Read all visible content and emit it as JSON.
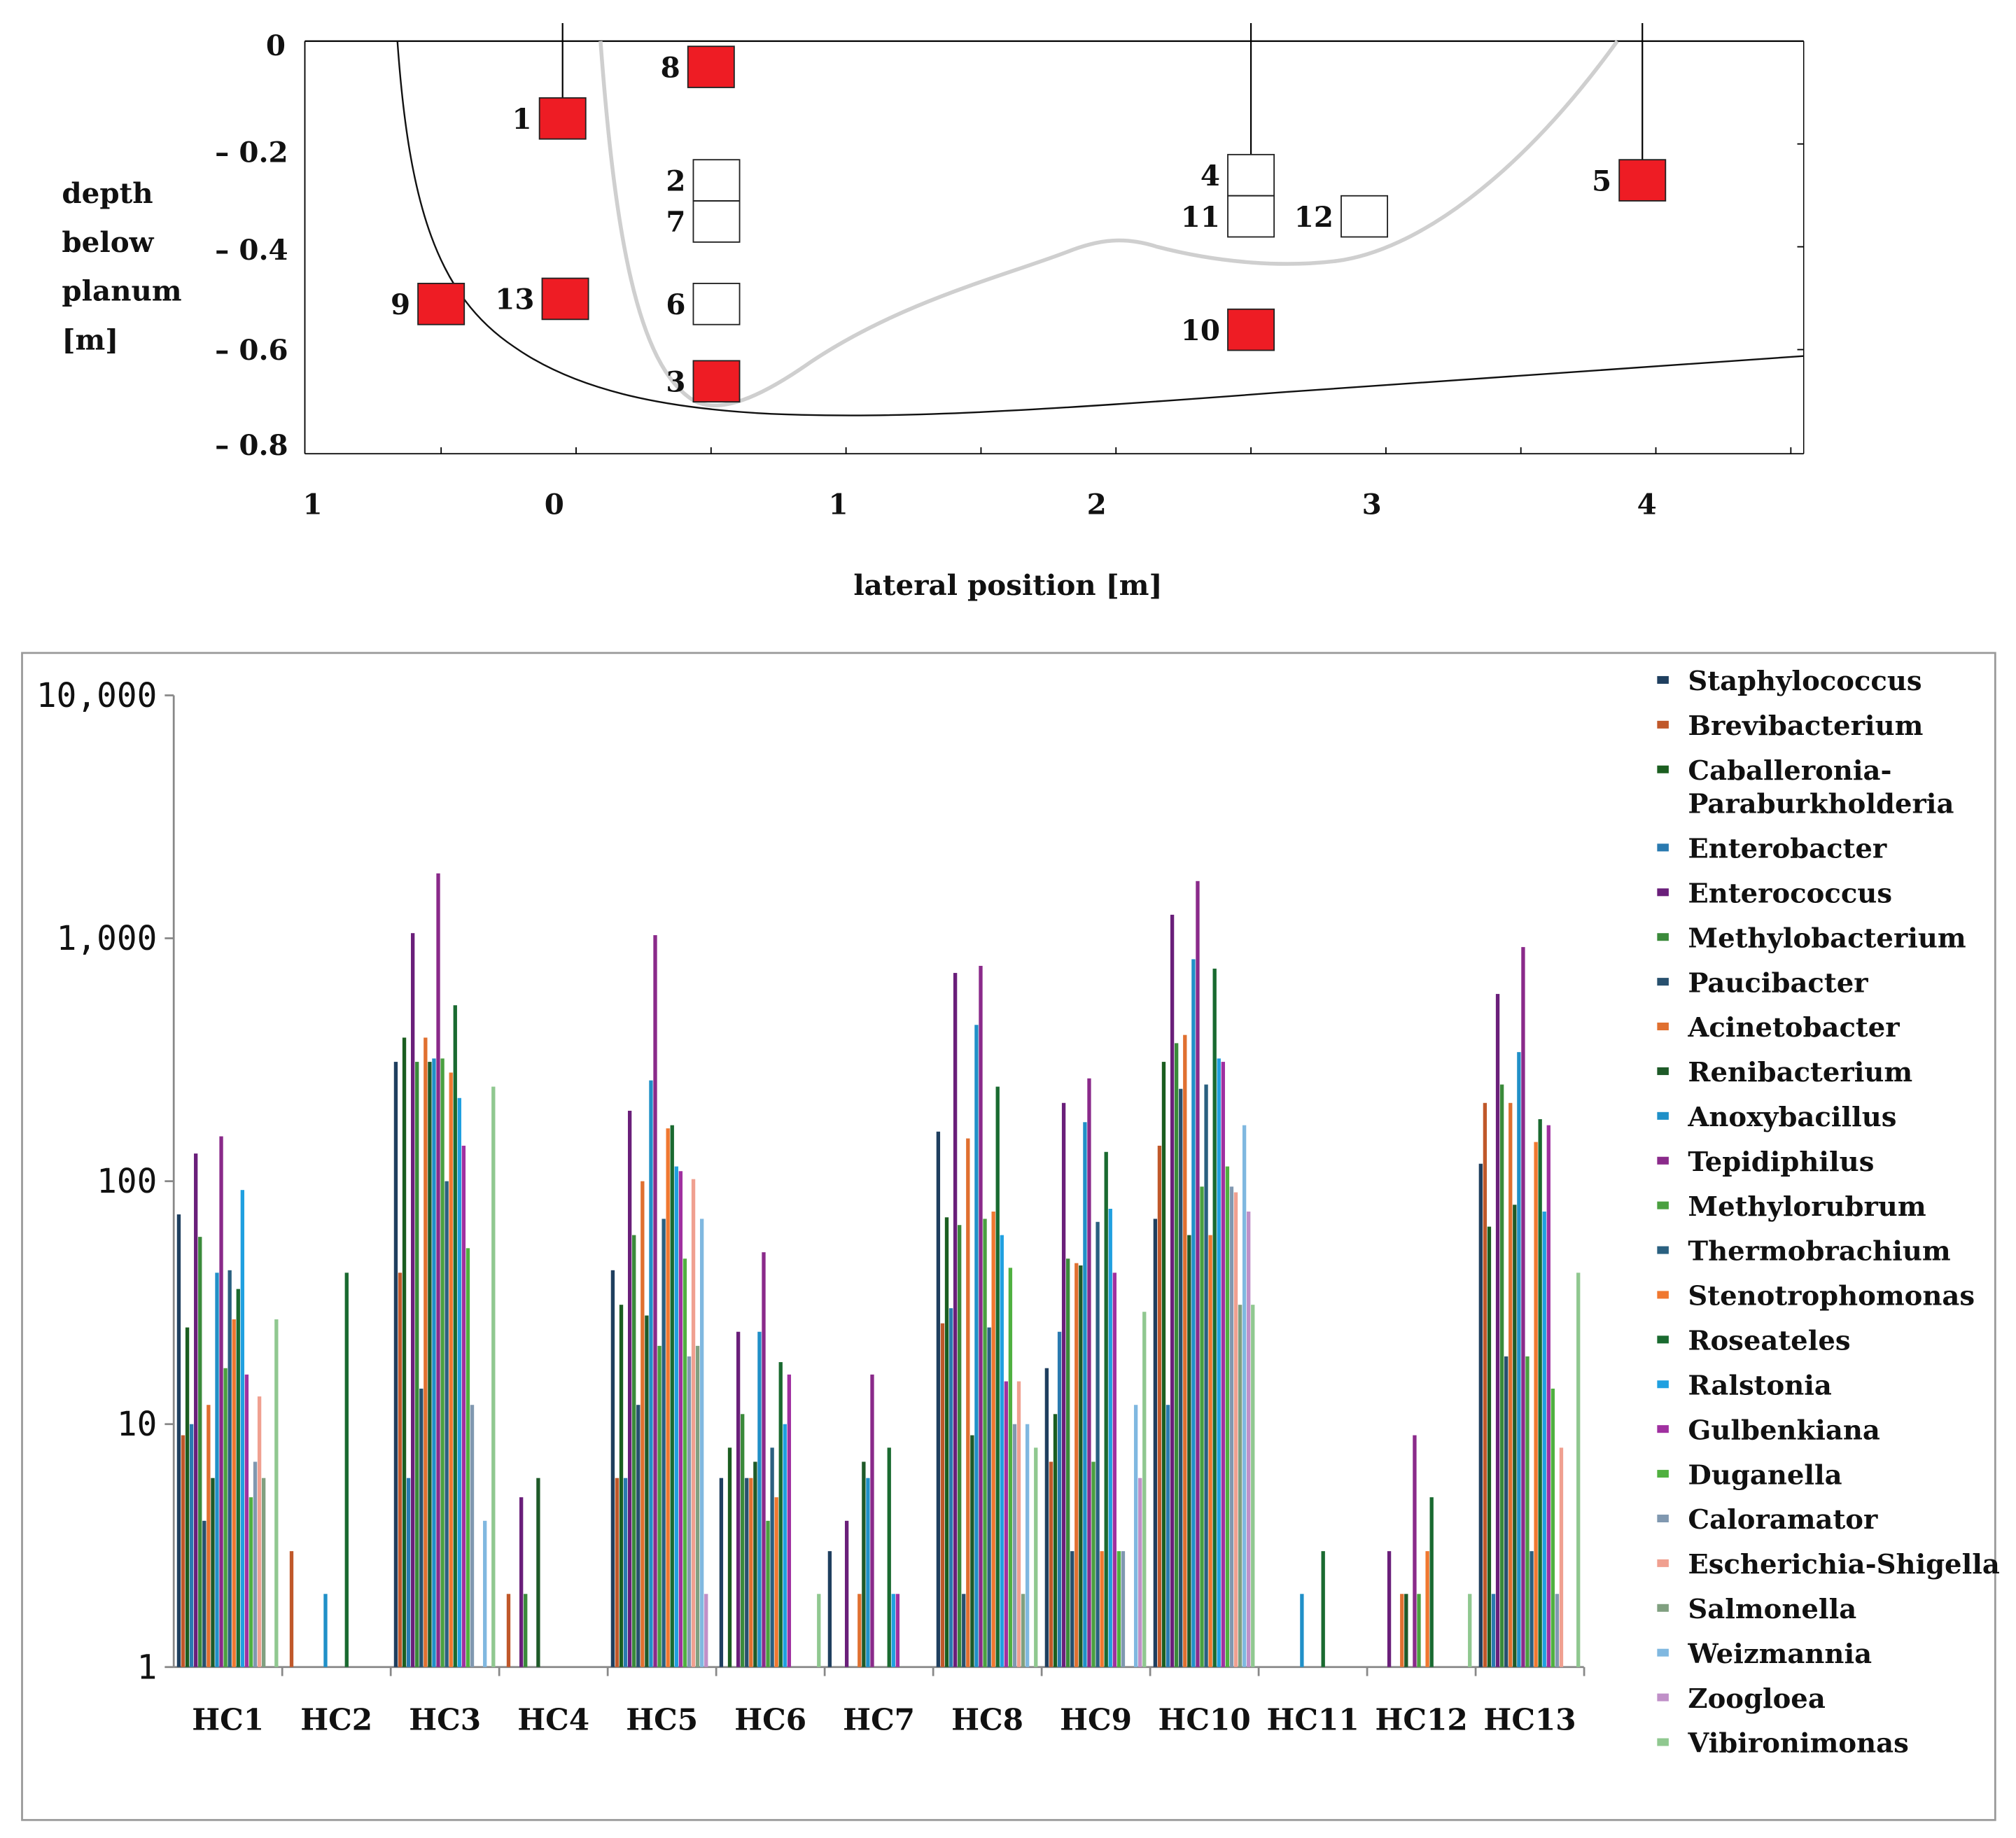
{
  "diagram": {
    "y_axis_title": [
      "depth",
      "below",
      "planum",
      "[m]"
    ],
    "y_ticks": [
      "0",
      "– 0.2",
      "– 0.4",
      "– 0.6",
      "– 0.8"
    ],
    "x_ticks": [
      "1",
      "0",
      "1",
      "2",
      "3",
      "4"
    ],
    "x_axis_title": "lateral position [m]",
    "samples": [
      {
        "label": "1",
        "lateral": -0.05,
        "depth": 0.15,
        "filled": true,
        "probe_line": true
      },
      {
        "label": "8",
        "lateral": 0.5,
        "depth": 0.05,
        "filled": true,
        "probe_line": false
      },
      {
        "label": "2",
        "lateral": 0.52,
        "depth": 0.27,
        "filled": false,
        "probe_line": false
      },
      {
        "label": "7",
        "lateral": 0.52,
        "depth": 0.35,
        "filled": false,
        "probe_line": false
      },
      {
        "label": "6",
        "lateral": 0.52,
        "depth": 0.51,
        "filled": false,
        "probe_line": false
      },
      {
        "label": "3",
        "lateral": 0.52,
        "depth": 0.66,
        "filled": true,
        "probe_line": false
      },
      {
        "label": "9",
        "lateral": -0.5,
        "depth": 0.51,
        "filled": true,
        "probe_line": false
      },
      {
        "label": "13",
        "lateral": -0.04,
        "depth": 0.5,
        "filled": true,
        "probe_line": false
      },
      {
        "label": "4",
        "lateral": 2.5,
        "depth": 0.26,
        "filled": false,
        "probe_line": true
      },
      {
        "label": "11",
        "lateral": 2.5,
        "depth": 0.34,
        "filled": false,
        "probe_line": false
      },
      {
        "label": "12",
        "lateral": 2.92,
        "depth": 0.34,
        "filled": false,
        "probe_line": false
      },
      {
        "label": "5",
        "lateral": 3.95,
        "depth": 0.27,
        "filled": true,
        "probe_line": true
      },
      {
        "label": "10",
        "lateral": 2.5,
        "depth": 0.56,
        "filled": true,
        "probe_line": false
      }
    ],
    "colors": {
      "filled": "#ee1c24",
      "empty": "#ffffff"
    }
  },
  "chart_data": {
    "type": "bar",
    "yscale": "log",
    "ylim": [
      1,
      10000
    ],
    "y_tick_labels": [
      "10,000",
      "1,000",
      "100",
      "10",
      "1"
    ],
    "legend_position": "right",
    "categories": [
      "HC1",
      "HC2",
      "HC3",
      "HC4",
      "HC5",
      "HC6",
      "HC7",
      "HC8",
      "HC9",
      "HC10",
      "HC11",
      "HC12",
      "HC13"
    ],
    "series": [
      {
        "name": "Staphylococcus",
        "color": "#1f3f5f",
        "values": [
          73,
          0,
          310,
          0,
          43,
          6,
          3,
          160,
          17,
          70,
          0,
          0,
          118
        ]
      },
      {
        "name": "Brevibacterium",
        "color": "#c0582a",
        "values": [
          9,
          3,
          42,
          2,
          6,
          0,
          0,
          26,
          7,
          140,
          0,
          0,
          210
        ]
      },
      {
        "name": "Caballeronia-Paraburkholderia",
        "color": "#1b5e20",
        "values": [
          25,
          0,
          390,
          0,
          31,
          8,
          0,
          71,
          11,
          310,
          0,
          0,
          65
        ]
      },
      {
        "name": "Enterobacter",
        "color": "#2a7ab0",
        "values": [
          10,
          0,
          6,
          0,
          6,
          0,
          0,
          30,
          24,
          12,
          0,
          0,
          2
        ]
      },
      {
        "name": "Enterococcus",
        "color": "#6a1f7a",
        "values": [
          130,
          0,
          1050,
          5,
          195,
          24,
          4,
          720,
          210,
          1250,
          0,
          3,
          590
        ]
      },
      {
        "name": "Methylobacterium",
        "color": "#3a8a3a",
        "values": [
          59,
          0,
          310,
          2,
          60,
          11,
          0,
          66,
          48,
          370,
          0,
          0,
          250
        ]
      },
      {
        "name": "Paucibacter",
        "color": "#28506e",
        "values": [
          4,
          0,
          14,
          0,
          12,
          6,
          0,
          2,
          3,
          240,
          0,
          0,
          19
        ]
      },
      {
        "name": "Acinetobacter",
        "color": "#e07030",
        "values": [
          12,
          0,
          390,
          0,
          100,
          6,
          2,
          150,
          46,
          400,
          0,
          2,
          210
        ]
      },
      {
        "name": "Renibacterium",
        "color": "#1e5a28",
        "values": [
          6,
          0,
          310,
          6,
          28,
          7,
          7,
          9,
          45,
          60,
          0,
          2,
          80
        ]
      },
      {
        "name": "Anoxybacillus",
        "color": "#2090c8",
        "values": [
          42,
          2,
          320,
          0,
          260,
          24,
          6,
          440,
          175,
          820,
          2,
          0,
          340
        ]
      },
      {
        "name": "Tepidiphilus",
        "color": "#8a2a8a",
        "values": [
          153,
          0,
          1850,
          0,
          1030,
          51,
          16,
          770,
          265,
          1720,
          0,
          9,
          920
        ]
      },
      {
        "name": "Methylorubrum",
        "color": "#4aa040",
        "values": [
          17,
          0,
          320,
          0,
          21,
          4,
          0,
          70,
          7,
          95,
          0,
          2,
          19
        ]
      },
      {
        "name": "Thermobrachium",
        "color": "#2a6080",
        "values": [
          43,
          0,
          100,
          0,
          70,
          8,
          0,
          25,
          68,
          250,
          0,
          0,
          3
        ]
      },
      {
        "name": "Stenotrophomonas",
        "color": "#f07830",
        "values": [
          27,
          0,
          280,
          0,
          165,
          5,
          0,
          75,
          3,
          60,
          0,
          3,
          145
        ]
      },
      {
        "name": "Roseateles",
        "color": "#1a6a30",
        "values": [
          36,
          42,
          530,
          0,
          170,
          18,
          8,
          245,
          132,
          750,
          3,
          5,
          180
        ]
      },
      {
        "name": "Ralstonia",
        "color": "#20a0e0",
        "values": [
          92,
          0,
          220,
          0,
          115,
          10,
          2,
          60,
          77,
          320,
          0,
          0,
          75
        ]
      },
      {
        "name": "Gulbenkiana",
        "color": "#a030a0",
        "values": [
          16,
          0,
          140,
          0,
          110,
          16,
          2,
          15,
          42,
          310,
          0,
          0,
          170
        ]
      },
      {
        "name": "Duganella",
        "color": "#50b040",
        "values": [
          5,
          0,
          53,
          0,
          48,
          0,
          0,
          44,
          3,
          115,
          0,
          0,
          14
        ]
      },
      {
        "name": "Caloramator",
        "color": "#8098b0",
        "values": [
          7,
          0,
          12,
          0,
          19,
          0,
          0,
          10,
          3,
          95,
          0,
          0,
          2
        ]
      },
      {
        "name": "Escherichia-Shigella",
        "color": "#f0a090",
        "values": [
          13,
          0,
          0,
          0,
          102,
          0,
          0,
          15,
          0,
          90,
          0,
          0,
          8
        ]
      },
      {
        "name": "Salmonella",
        "color": "#80a080",
        "values": [
          6,
          0,
          0,
          0,
          21,
          0,
          0,
          2,
          0,
          31,
          0,
          0,
          0
        ]
      },
      {
        "name": "Weizmannia",
        "color": "#80b8e0",
        "values": [
          0,
          0,
          4,
          0,
          70,
          0,
          0,
          10,
          12,
          170,
          0,
          0,
          0
        ]
      },
      {
        "name": "Zoogloea",
        "color": "#c090c8",
        "values": [
          0,
          0,
          0,
          0,
          2,
          0,
          0,
          0,
          6,
          75,
          0,
          0,
          0
        ]
      },
      {
        "name": "Vibironimonas",
        "color": "#90c890",
        "values": [
          27,
          0,
          245,
          0,
          0,
          2,
          0,
          8,
          29,
          31,
          0,
          2,
          42
        ]
      }
    ]
  }
}
